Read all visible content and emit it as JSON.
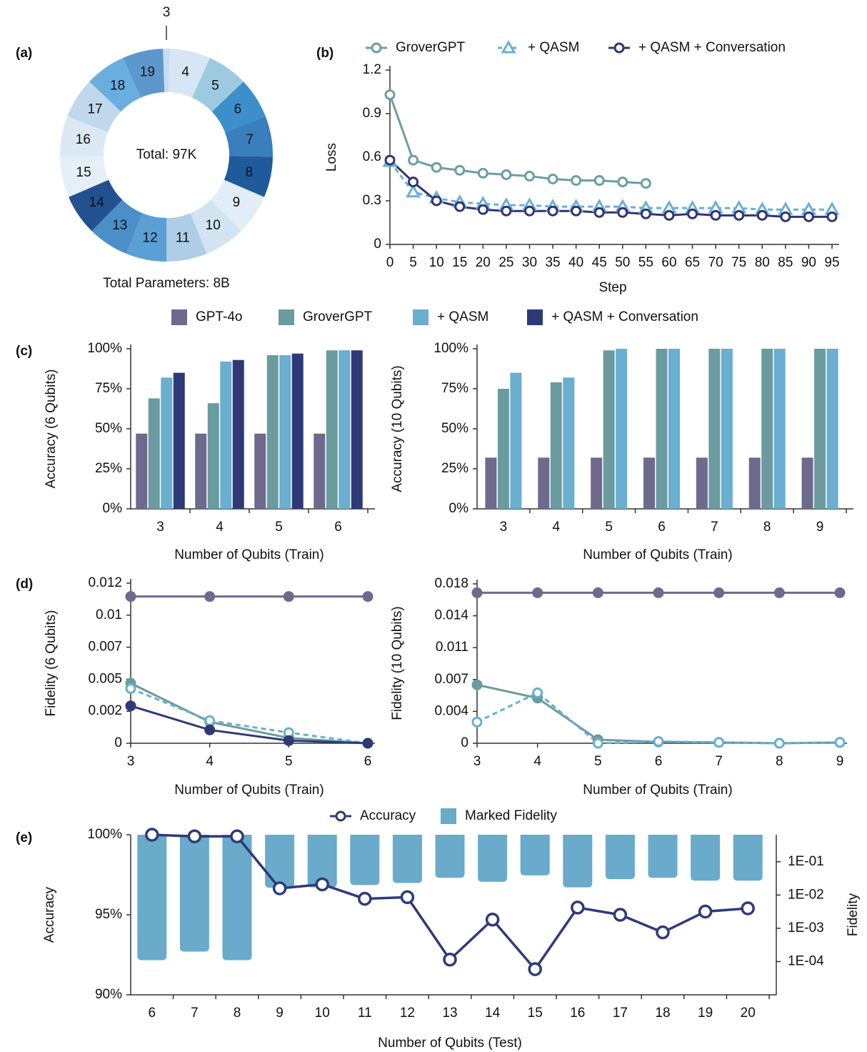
{
  "chart_data": [
    {
      "type": "pie",
      "panel": "(a)",
      "categories": [
        "3",
        "4",
        "5",
        "6",
        "7",
        "8",
        "9",
        "10",
        "11",
        "12",
        "13",
        "14",
        "15",
        "16",
        "17",
        "18",
        "19"
      ],
      "values": [
        1,
        6,
        6,
        6,
        6,
        6,
        6,
        6,
        6,
        6,
        6,
        6,
        6,
        6,
        6,
        6,
        6
      ],
      "colors": [
        "#c6dbef",
        "#d6e6f4",
        "#9ecae1",
        "#3d8fcc",
        "#3a7fbd",
        "#1f5a9b",
        "#e1edf7",
        "#d2e3f2",
        "#aecde6",
        "#5aa0d6",
        "#4a8fc8",
        "#23508f",
        "#e5eff8",
        "#dce9f5",
        "#bfd8ec",
        "#6aaee0",
        "#5d98cc"
      ],
      "center_label": "Total: 97K",
      "caption": "Total Parameters: 8B"
    },
    {
      "type": "line",
      "panel": "(b)",
      "x": [
        0,
        5,
        10,
        15,
        20,
        25,
        30,
        35,
        40,
        45,
        50,
        55,
        60,
        65,
        70,
        75,
        80,
        85,
        90,
        95
      ],
      "xlim": [
        0,
        95
      ],
      "xticks": [
        0,
        5,
        10,
        15,
        20,
        25,
        30,
        35,
        40,
        45,
        50,
        55,
        60,
        65,
        70,
        75,
        80,
        85,
        90,
        95
      ],
      "ylim": [
        0,
        1.2
      ],
      "yticks": [
        0,
        0.3,
        0.6,
        0.9,
        1.2
      ],
      "xlabel": "Step",
      "ylabel": "Loss",
      "legend": true,
      "series": [
        {
          "name": "GroverGPT",
          "color": "#6b9ea3",
          "marker": "circle",
          "filled": false,
          "dashed": false,
          "values": [
            1.03,
            0.58,
            0.53,
            0.51,
            0.49,
            0.48,
            0.47,
            0.45,
            0.44,
            0.44,
            0.43,
            0.42,
            null,
            null,
            null,
            null,
            null,
            null,
            null,
            null
          ]
        },
        {
          "name": "+ QASM",
          "color": "#6aaed6",
          "marker": "triangle",
          "filled": false,
          "dashed": true,
          "values": [
            0.57,
            0.36,
            0.32,
            0.29,
            0.28,
            0.27,
            0.27,
            0.26,
            0.26,
            0.26,
            0.26,
            0.25,
            0.25,
            0.25,
            0.25,
            0.25,
            0.24,
            0.24,
            0.24,
            0.24
          ]
        },
        {
          "name": "+ QASM + Conversation",
          "color": "#2f3575",
          "marker": "circle",
          "filled": false,
          "dashed": false,
          "values": [
            0.58,
            0.43,
            0.3,
            0.26,
            0.24,
            0.23,
            0.23,
            0.23,
            0.23,
            0.22,
            0.22,
            0.21,
            0.2,
            0.21,
            0.2,
            0.2,
            0.2,
            0.19,
            0.19,
            0.19
          ]
        }
      ]
    },
    {
      "type": "bar",
      "panel": "(c)",
      "categories": [
        "3",
        "4",
        "5",
        "6"
      ],
      "ylim": [
        0,
        100
      ],
      "yticks": [
        {
          "value": 0,
          "label": "0%"
        },
        {
          "value": 25,
          "label": "25%"
        },
        {
          "value": 50,
          "label": "50%"
        },
        {
          "value": 75,
          "label": "75%"
        },
        {
          "value": 100,
          "label": "100%"
        }
      ],
      "xlabel": "Number of Qubits (Train)",
      "ylabel": "Accuracy (6 Qubits)",
      "legend": true,
      "series": [
        {
          "name": "GPT-4o",
          "color": "#6e6a8e",
          "values": [
            47,
            47,
            47,
            47
          ]
        },
        {
          "name": "GroverGPT",
          "color": "#6b9b9e",
          "values": [
            69,
            66,
            96,
            99
          ]
        },
        {
          "name": "+ QASM",
          "color": "#6aaed0",
          "values": [
            82,
            92,
            96,
            99
          ]
        },
        {
          "name": "+ QASM + Conversation",
          "color": "#2e3a78",
          "values": [
            85,
            93,
            97,
            99
          ]
        }
      ]
    },
    {
      "type": "bar",
      "categories": [
        "3",
        "4",
        "5",
        "6",
        "7",
        "8",
        "9"
      ],
      "ylim": [
        0,
        100
      ],
      "yticks": [
        {
          "value": 0,
          "label": "0%"
        },
        {
          "value": 25,
          "label": "25%"
        },
        {
          "value": 50,
          "label": "50%"
        },
        {
          "value": 75,
          "label": "75%"
        },
        {
          "value": 100,
          "label": "100%"
        }
      ],
      "xlabel": "Number of Qubits (Train)",
      "ylabel": "Accuracy (10 Qubits)",
      "legend": false,
      "series": [
        {
          "color": "#6e6a8e",
          "values": [
            32,
            32,
            32,
            32,
            32,
            32,
            32
          ]
        },
        {
          "color": "#6b9b9e",
          "values": [
            75,
            79,
            99,
            100,
            100,
            100,
            100
          ]
        },
        {
          "color": "#6aaed0",
          "values": [
            85,
            82,
            100,
            100,
            100,
            100,
            100
          ]
        }
      ]
    },
    {
      "type": "line",
      "panel": "(d)",
      "x": [
        3,
        4,
        5,
        6
      ],
      "xlim": [
        3,
        6
      ],
      "xticks": [
        3,
        4,
        5,
        6
      ],
      "ylim": [
        0,
        0.012
      ],
      "yticks": [
        0,
        {
          "value": 0.0024,
          "label": "0.002"
        },
        {
          "value": 0.0048,
          "label": "0.005"
        },
        {
          "value": 0.0072,
          "label": "0.007"
        },
        {
          "value": 0.0096,
          "label": "0.01"
        },
        0.012
      ],
      "xlabel": "Number of Qubits (Train)",
      "ylabel": "Fidelity (6 Qubits)",
      "legend": false,
      "series": [
        {
          "color": "#6e6a8e",
          "marker": "circle",
          "filled": true,
          "dashed": false,
          "values": [
            0.011,
            0.011,
            0.011,
            0.011
          ]
        },
        {
          "color": "#6b9b9e",
          "marker": "circle",
          "filled": true,
          "dashed": false,
          "values": [
            0.0045,
            0.0016,
            0.0004,
            0
          ]
        },
        {
          "color": "#6aaed0",
          "marker": "circle",
          "filled": false,
          "dashed": true,
          "values": [
            0.0041,
            0.0017,
            0.0008,
            0
          ]
        },
        {
          "color": "#2e3a78",
          "marker": "circle",
          "filled": true,
          "dashed": false,
          "values": [
            0.0028,
            0.001,
            0.0002,
            0
          ]
        }
      ]
    },
    {
      "type": "line",
      "x": [
        3,
        4,
        5,
        6,
        7,
        8,
        9
      ],
      "xlim": [
        3,
        9
      ],
      "xticks": [
        3,
        4,
        5,
        6,
        7,
        8,
        9
      ],
      "ylim": [
        0,
        0.018
      ],
      "yticks": [
        0,
        {
          "value": 0.0036,
          "label": "0.004"
        },
        {
          "value": 0.0072,
          "label": "0.007"
        },
        {
          "value": 0.0108,
          "label": "0.011"
        },
        {
          "value": 0.0144,
          "label": "0.014"
        },
        0.018
      ],
      "xlabel": "Number of Qubits (Train)",
      "ylabel": "Fidelity (10 Qubits)",
      "legend": false,
      "series": [
        {
          "color": "#6e6a8e",
          "marker": "circle",
          "filled": true,
          "dashed": false,
          "values": [
            0.017,
            0.017,
            0.017,
            0.017,
            0.017,
            0.017,
            0.017
          ]
        },
        {
          "color": "#6b9b9e",
          "marker": "circle",
          "filled": true,
          "dashed": false,
          "values": [
            0.0066,
            0.0051,
            0.0004,
            0.00016,
            0.0001,
            0,
            0.0001
          ]
        },
        {
          "color": "#6aaed0",
          "marker": "circle",
          "filled": false,
          "dashed": true,
          "values": [
            0.0024,
            0.0057,
            0,
            0.0002,
            0.0001,
            0,
            0.0001
          ]
        }
      ]
    },
    {
      "type": "combo",
      "panel": "(e)",
      "categories": [
        "6",
        "7",
        "8",
        "9",
        "10",
        "11",
        "12",
        "13",
        "14",
        "15",
        "16",
        "17",
        "18",
        "19",
        "20"
      ],
      "ylim": [
        90,
        100
      ],
      "yticks": [
        {
          "value": 90,
          "label": "90%"
        },
        {
          "value": 95,
          "label": "95%"
        },
        {
          "value": 100,
          "label": "100%"
        }
      ],
      "y2lim": [
        1e-05,
        0.65
      ],
      "y2scale": "log",
      "y2ticks": [
        {
          "value": 0.1,
          "label": "1E-01"
        },
        {
          "value": 0.01,
          "label": "1E-02"
        },
        {
          "value": 0.001,
          "label": "1E-03"
        },
        {
          "value": 0.0001,
          "label": "1E-04"
        }
      ],
      "xlabel": "Number of Qubits (Test)",
      "ylabel": "Accuracy",
      "y2label": "Fidelity",
      "legend": true,
      "series": [
        {
          "name": "Accuracy",
          "kind": "line",
          "color": "#2f3a78",
          "marker": "circle",
          "filled": false,
          "dashed": false,
          "values": [
            100.0,
            99.9,
            99.9,
            96.65,
            96.9,
            96.0,
            96.1,
            92.2,
            94.7,
            91.6,
            95.45,
            95.0,
            93.9,
            95.2,
            95.4
          ]
        },
        {
          "name": "Marked Fidelity",
          "kind": "bar",
          "axis": "y2",
          "color": "#6aaacb",
          "values": [
            0.00011,
            0.0002,
            0.00011,
            0.0166,
            0.017,
            0.02,
            0.023,
            0.033,
            0.025,
            0.039,
            0.017,
            0.03,
            0.033,
            0.027,
            0.027
          ]
        }
      ]
    }
  ]
}
